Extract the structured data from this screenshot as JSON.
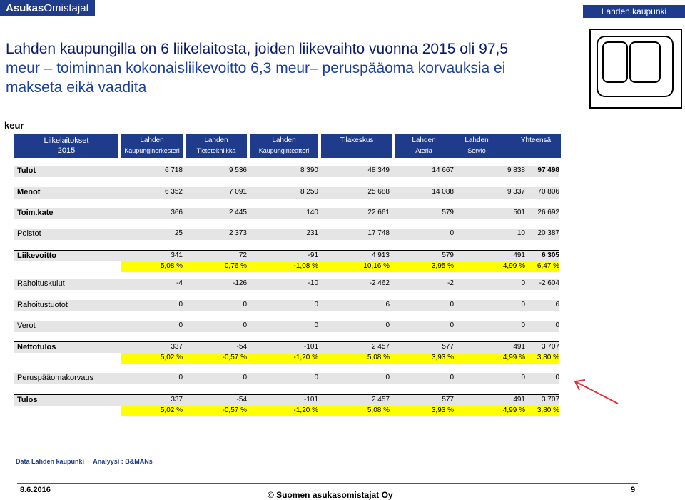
{
  "header": {
    "brand_bold": "Asukas",
    "brand_rest": "Omistajat",
    "tag": "Lahden kaupunki"
  },
  "headline": {
    "line1": "Lahden kaupungilla on 6 liikelaitosta, joiden liikevaihto vuonna 2015 oli 97,5",
    "line2": "meur – toiminnan kokonaisliikevoitto 6,3 meur– peruspääoma korvauksia ei",
    "line3": "makseta eikä vaadita"
  },
  "unit": "keur",
  "columns": [
    {
      "l1": "Liikelaitokset",
      "l2": "2015"
    },
    {
      "l1": "Lahden",
      "l2": "Kaupunginorkesteri"
    },
    {
      "l1": "Lahden",
      "l2": "Tietotekniikka"
    },
    {
      "l1": "Lahden",
      "l2": "Kaupunginteatteri"
    },
    {
      "l1": "Tilakeskus",
      "l2": ""
    },
    {
      "l1": "Lahden",
      "l2": "Ateria"
    },
    {
      "l1": "Lahden",
      "l2": "Servio"
    },
    {
      "l1": "Yhteensä",
      "l2": ""
    }
  ],
  "rows": [
    {
      "label": "Tulot",
      "values": [
        "6 718",
        "9 536",
        "8 390",
        "48 349",
        "14 667",
        "9 838",
        "97 498"
      ]
    },
    {
      "label": "Menot",
      "values": [
        "6 352",
        "7 091",
        "8 250",
        "25 688",
        "14 088",
        "9 337",
        "70 806"
      ]
    },
    {
      "label": "Toim.kate",
      "values": [
        "366",
        "2 445",
        "140",
        "22 661",
        "579",
        "501",
        "26 692"
      ]
    },
    {
      "label": "Poistot",
      "values": [
        "25",
        "2 373",
        "231",
        "17 748",
        "0",
        "10",
        "20 387"
      ]
    },
    {
      "label": "Liikevoitto",
      "values": [
        "341",
        "72",
        "-91",
        "4 913",
        "579",
        "491",
        "6 305"
      ],
      "pct": [
        "5,08 %",
        "0,76 %",
        "-1,08 %",
        "10,16 %",
        "3,95 %",
        "4,99 %",
        "6,47 %"
      ]
    },
    {
      "label": "Rahoituskulut",
      "values": [
        "-4",
        "-126",
        "-10",
        "-2 462",
        "-2",
        "0",
        "-2 604"
      ]
    },
    {
      "label": "Rahoitustuotot",
      "values": [
        "0",
        "0",
        "0",
        "6",
        "0",
        "0",
        "6"
      ]
    },
    {
      "label": "Verot",
      "values": [
        "0",
        "0",
        "0",
        "0",
        "0",
        "0",
        "0"
      ]
    },
    {
      "label": "Nettotulos",
      "values": [
        "337",
        "-54",
        "-101",
        "2 457",
        "577",
        "491",
        "3 707"
      ],
      "pct": [
        "5,02 %",
        "-0,57 %",
        "-1,20 %",
        "5,08 %",
        "3,93 %",
        "4,99 %",
        "3,80 %"
      ]
    },
    {
      "label": "Peruspääomakorvaus",
      "values": [
        "0",
        "0",
        "0",
        "0",
        "0",
        "0",
        "0"
      ]
    },
    {
      "label": "Tulos",
      "values": [
        "337",
        "-54",
        "-101",
        "2 457",
        "577",
        "491",
        "3 707"
      ],
      "pct": [
        "5,02 %",
        "-0,57 %",
        "-1,20 %",
        "5,08 %",
        "3,93 %",
        "4,99 %",
        "3,80 %"
      ]
    }
  ],
  "footer": {
    "data_source": "Data Lahden kaupunki",
    "analysis": "Analyysi : B&MANs",
    "date": "8.6.2016",
    "copyright": "© Suomen asukasomistajat Oy",
    "page": "9"
  },
  "colors": {
    "navy": "#1f3b8c",
    "highlight": "#ffff00",
    "row_bg": "#e5e5e5",
    "arrow": "#e8303a"
  }
}
